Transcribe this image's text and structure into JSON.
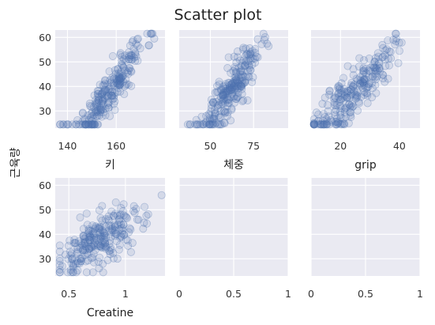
{
  "chart_data": {
    "type": "scatter",
    "title": "Scatter plot",
    "ylabel": "근육량",
    "grid": true,
    "y_range": [
      23,
      63
    ],
    "y_ticks": [
      30,
      40,
      50,
      60
    ],
    "panels": [
      {
        "id": "height",
        "xlabel": "키",
        "x_range": [
          135,
          180
        ],
        "x_ticks": [
          140,
          160
        ],
        "gen": {
          "mean": 157,
          "sd": 7.5,
          "slope": 1.45,
          "base": 37.5,
          "noise": 4.6,
          "lo": 137,
          "hi": 178,
          "seed": 11
        }
      },
      {
        "id": "weight",
        "xlabel": "체중",
        "x_range": [
          32,
          95
        ],
        "x_ticks": [
          50,
          75
        ],
        "gen": {
          "mean": 61,
          "sd": 9,
          "slope": 0.95,
          "base": 37.5,
          "noise": 4.8,
          "lo": 37,
          "hi": 92,
          "seed": 23
        }
      },
      {
        "id": "grip",
        "xlabel": "grip",
        "x_range": [
          10,
          47
        ],
        "x_ticks": [
          20,
          40
        ],
        "gen": {
          "mean": 24,
          "sd": 7,
          "slope": 1.2,
          "base": 37.5,
          "noise": 5.2,
          "lo": 11,
          "hi": 45,
          "seed": 37
        }
      },
      {
        "id": "creatine",
        "xlabel": "Creatine",
        "x_range": [
          0.38,
          1.35
        ],
        "x_ticks": [
          0.5,
          1.0
        ],
        "gen": {
          "mean": 0.78,
          "sd": 0.2,
          "slope": 25,
          "base": 37.5,
          "noise": 5.6,
          "lo": 0.42,
          "hi": 1.32,
          "seed": 53
        }
      },
      {
        "id": "empty1",
        "xlabel": "",
        "x_range": [
          0,
          1
        ],
        "x_ticks": [
          0.0,
          0.5,
          1.0
        ]
      },
      {
        "id": "empty2",
        "xlabel": "",
        "x_range": [
          0,
          1
        ],
        "x_ticks": [
          0.0,
          0.5,
          1.0
        ]
      }
    ],
    "points_per_panel": 250,
    "color": "#4c72b0",
    "panel_background": "#eaeaf2"
  }
}
